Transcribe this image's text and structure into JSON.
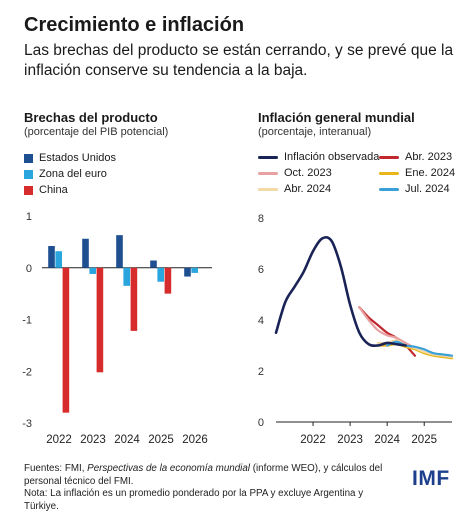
{
  "header": {
    "title": "Crecimiento e inflación",
    "subtitle": "Las brechas del producto se están cerrando, y se prevé que la inflación conserve su tendencia a la baja."
  },
  "left_panel": {
    "title": "Brechas del producto",
    "units": "(porcentaje del PIB potencial)",
    "legend": [
      {
        "name": "Estados Unidos",
        "color": "#1d4f91"
      },
      {
        "name": "Zona del euro",
        "color": "#2aa6de"
      },
      {
        "name": "China",
        "color": "#d62c2c"
      }
    ]
  },
  "right_panel": {
    "title": "Inflación general mundial",
    "units": "(porcentaje, interanual)",
    "legend": [
      {
        "name": "Inflación observada",
        "color": "#1a2356"
      },
      {
        "name": "Abr. 2023",
        "color": "#c0282d"
      },
      {
        "name": "Oct. 2023",
        "color": "#e8a0a0"
      },
      {
        "name": "Ene. 2024",
        "color": "#e8b51a"
      },
      {
        "name": "Abr. 2024",
        "color": "#f2d9a6"
      },
      {
        "name": "Jul. 2024",
        "color": "#3aa0d8"
      }
    ]
  },
  "footer": {
    "sources_prefix": "Fuentes: FMI, ",
    "sources_italic": "Perspectivas de la economía mundial",
    "sources_suffix": " (informe WEO), y cálculos del personal técnico del FMI.",
    "note": "Nota: La inflación es un promedio ponderado por la PPA y excluye Argentina y Türkiye.",
    "logo": "IMF"
  },
  "chart_data": [
    {
      "type": "bar",
      "title": "Brechas del producto",
      "ylabel": "(porcentaje del PIB potencial)",
      "categories": [
        "2022",
        "2023",
        "2024",
        "2025",
        "2026"
      ],
      "ylim": [
        -3,
        1
      ],
      "yticks": [
        1,
        0,
        -1,
        -2,
        -3
      ],
      "series": [
        {
          "name": "Estados Unidos",
          "color": "#1d4f91",
          "values": [
            0.42,
            0.56,
            0.63,
            0.14,
            -0.17
          ]
        },
        {
          "name": "Zona del euro",
          "color": "#2aa6de",
          "values": [
            0.32,
            -0.12,
            -0.35,
            -0.27,
            -0.1
          ]
        },
        {
          "name": "China",
          "color": "#d62c2c",
          "values": [
            -2.8,
            -2.02,
            -1.22,
            -0.5,
            0.0
          ]
        }
      ]
    },
    {
      "type": "line",
      "title": "Inflación general mundial",
      "ylabel": "(porcentaje, interanual)",
      "xlim": [
        2021,
        2025.75
      ],
      "ylim": [
        0,
        8
      ],
      "xticks": [
        2022,
        2023,
        2024,
        2025
      ],
      "yticks": [
        0,
        2,
        4,
        6,
        8
      ],
      "series": [
        {
          "name": "Inflación observada",
          "color": "#1a2356",
          "x": [
            2021.0,
            2021.25,
            2021.5,
            2021.75,
            2022.0,
            2022.25,
            2022.5,
            2022.75,
            2023.0,
            2023.25,
            2023.5,
            2023.75,
            2024.0,
            2024.25,
            2024.5
          ],
          "y": [
            3.5,
            4.7,
            5.3,
            5.9,
            6.7,
            7.2,
            7.1,
            6.1,
            4.6,
            3.5,
            3.05,
            3.0,
            3.1,
            3.05,
            3.0
          ]
        },
        {
          "name": "Abr. 2023",
          "color": "#c0282d",
          "x": [
            2023.25,
            2023.5,
            2023.75,
            2024.0,
            2024.25,
            2024.5,
            2024.75
          ],
          "y": [
            4.5,
            4.1,
            3.8,
            3.5,
            3.3,
            3.0,
            2.6
          ]
        },
        {
          "name": "Oct. 2023",
          "color": "#e8a0a0",
          "x": [
            2023.25,
            2023.5,
            2023.75,
            2024.0,
            2024.25,
            2024.5,
            2024.75
          ],
          "y": [
            4.5,
            4.0,
            3.6,
            3.4,
            3.3,
            3.1,
            2.9
          ]
        },
        {
          "name": "Ene. 2024",
          "color": "#e8b51a",
          "x": [
            2023.75,
            2024.0,
            2024.25,
            2024.5,
            2024.75,
            2025.0,
            2025.25,
            2025.5,
            2025.75
          ],
          "y": [
            3.0,
            3.0,
            3.05,
            2.95,
            2.85,
            2.7,
            2.6,
            2.55,
            2.5
          ]
        },
        {
          "name": "Abr. 2024",
          "color": "#f2d9a6",
          "x": [
            2023.75,
            2024.0,
            2024.25,
            2024.5,
            2024.75,
            2025.0,
            2025.25,
            2025.5,
            2025.75
          ],
          "y": [
            3.1,
            3.1,
            3.2,
            3.0,
            2.9,
            2.75,
            2.65,
            2.6,
            2.55
          ]
        },
        {
          "name": "Jul. 2024",
          "color": "#3aa0d8",
          "x": [
            2024.0,
            2024.25,
            2024.5,
            2024.75,
            2025.0,
            2025.25,
            2025.5,
            2025.75
          ],
          "y": [
            3.0,
            3.15,
            3.0,
            2.95,
            2.85,
            2.7,
            2.65,
            2.6
          ]
        }
      ]
    }
  ]
}
